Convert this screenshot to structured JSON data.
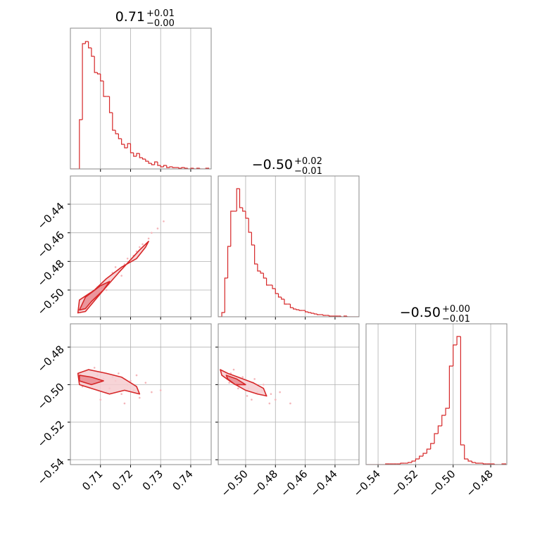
{
  "chart_data": [
    {
      "type": "histogram",
      "title": "0.71",
      "title_upper": "+0.01",
      "title_lower": "−0.00",
      "color": "#d62728",
      "grid": true,
      "bins": [
        0.7,
        0.701,
        0.702,
        0.703,
        0.704,
        0.705,
        0.706,
        0.707,
        0.708,
        0.709,
        0.71,
        0.711,
        0.712,
        0.713,
        0.714,
        0.715,
        0.716,
        0.717,
        0.718,
        0.719,
        0.72,
        0.721,
        0.722,
        0.723,
        0.724,
        0.725,
        0.726,
        0.727,
        0.728,
        0.729,
        0.73,
        0.731,
        0.732,
        0.733,
        0.734,
        0.735,
        0.736,
        0.737,
        0.738,
        0.739,
        0.74,
        0.741,
        0.742,
        0.743,
        0.744,
        0.745,
        0.746
      ],
      "counts": [
        0,
        0,
        0,
        70,
        178,
        181,
        172,
        160,
        137,
        135,
        125,
        103,
        103,
        80,
        55,
        50,
        43,
        35,
        30,
        36,
        23,
        18,
        22,
        16,
        14,
        11,
        8,
        6,
        10,
        5,
        3,
        5,
        2,
        3,
        2,
        2,
        1,
        2,
        1,
        0,
        1,
        0,
        1,
        0,
        0,
        1
      ],
      "xlim": [
        0.7,
        0.7468
      ],
      "ylim": [
        0,
        200
      ],
      "xticks": [
        0.71,
        0.72,
        0.73,
        0.74
      ]
    },
    {
      "type": "scatter",
      "color": "#d62728",
      "point_color": "#f4b6ba",
      "contour_fills": [
        "#f6cdd0",
        "#e98b92"
      ],
      "grid": true,
      "x": [
        0.704,
        0.706,
        0.708,
        0.709,
        0.711,
        0.713,
        0.714,
        0.716,
        0.718,
        0.719,
        0.721,
        0.723,
        0.724,
        0.726,
        0.727,
        0.729,
        0.712,
        0.707,
        0.717,
        0.722,
        0.731,
        0.705,
        0.715,
        0.72
      ],
      "y": [
        -0.512,
        -0.506,
        -0.503,
        -0.498,
        -0.495,
        -0.493,
        -0.488,
        -0.486,
        -0.482,
        -0.478,
        -0.476,
        -0.47,
        -0.468,
        -0.464,
        -0.46,
        -0.457,
        -0.5,
        -0.509,
        -0.49,
        -0.473,
        -0.452,
        -0.509,
        -0.484,
        -0.48
      ],
      "contours": [
        {
          "x": [
            0.7025,
            0.703,
            0.708,
            0.712,
            0.717,
            0.722,
            0.725,
            0.726,
            0.723,
            0.716,
            0.711,
            0.707,
            0.705
          ],
          "y": [
            -0.516,
            -0.507,
            -0.5,
            -0.492,
            -0.484,
            -0.478,
            -0.47,
            -0.466,
            -0.472,
            -0.488,
            -0.5,
            -0.51,
            -0.515
          ]
        },
        {
          "x": [
            0.703,
            0.705,
            0.71,
            0.713,
            0.711,
            0.707,
            0.705
          ],
          "y": [
            -0.514,
            -0.505,
            -0.497,
            -0.494,
            -0.5,
            -0.508,
            -0.513
          ]
        }
      ],
      "xlim": [
        0.7,
        0.7468
      ],
      "ylim": [
        -0.5187,
        -0.4203
      ],
      "xticks": [
        0.71,
        0.72,
        0.73,
        0.74
      ],
      "yticks": [
        {
          "value": -0.44,
          "label": "−0.44"
        },
        {
          "value": -0.46,
          "label": "−0.46"
        },
        {
          "value": -0.48,
          "label": "−0.48"
        },
        {
          "value": -0.5,
          "label": "−0.50"
        }
      ],
      "show_ytick_labels": true
    },
    {
      "type": "histogram",
      "title": "−0.50",
      "title_upper": "+0.02",
      "title_lower": "−0.01",
      "color": "#d62728",
      "grid": true,
      "bins": [
        -0.518,
        -0.516,
        -0.514,
        -0.512,
        -0.51,
        -0.508,
        -0.506,
        -0.504,
        -0.502,
        -0.5,
        -0.498,
        -0.496,
        -0.494,
        -0.492,
        -0.49,
        -0.488,
        -0.486,
        -0.484,
        -0.482,
        -0.48,
        -0.478,
        -0.476,
        -0.474,
        -0.472,
        -0.47,
        -0.468,
        -0.466,
        -0.464,
        -0.462,
        -0.46,
        -0.458,
        -0.456,
        -0.454,
        -0.452,
        -0.45,
        -0.448,
        -0.446,
        -0.444,
        -0.442,
        -0.44,
        -0.438,
        -0.436,
        -0.434,
        -0.432,
        -0.43,
        -0.428,
        -0.426,
        -0.424
      ],
      "counts": [
        0,
        6,
        55,
        100,
        150,
        150,
        182,
        155,
        150,
        140,
        120,
        102,
        75,
        65,
        62,
        55,
        45,
        45,
        40,
        33,
        28,
        25,
        18,
        18,
        13,
        11,
        10,
        9,
        9,
        7,
        6,
        5,
        4,
        3,
        3,
        2,
        2,
        1,
        1,
        1,
        1,
        0,
        1,
        0,
        0,
        0,
        0
      ],
      "xlim": [
        -0.5184,
        -0.4239
      ],
      "ylim": [
        0,
        200
      ],
      "xticks": [
        -0.5,
        -0.48,
        -0.46,
        -0.44
      ]
    },
    {
      "type": "scatter",
      "color": "#d62728",
      "point_color": "#f4b6ba",
      "contour_fills": [
        "#f6cdd0",
        "#e98b92"
      ],
      "grid": true,
      "x": [
        0.703,
        0.705,
        0.707,
        0.709,
        0.711,
        0.713,
        0.715,
        0.717,
        0.719,
        0.721,
        0.723,
        0.725,
        0.704,
        0.708,
        0.712,
        0.716,
        0.72,
        0.727,
        0.71,
        0.714,
        0.718,
        0.706,
        0.722,
        0.73
      ],
      "y": [
        -0.494,
        -0.493,
        -0.499,
        -0.495,
        -0.497,
        -0.502,
        -0.498,
        -0.505,
        -0.5,
        -0.503,
        -0.507,
        -0.499,
        -0.501,
        -0.491,
        -0.504,
        -0.494,
        -0.498,
        -0.504,
        -0.508,
        -0.496,
        -0.51,
        -0.497,
        -0.495,
        -0.503
      ],
      "contours": [
        {
          "x": [
            0.7025,
            0.706,
            0.712,
            0.717,
            0.722,
            0.723,
            0.718,
            0.713,
            0.707,
            0.703
          ],
          "y": [
            -0.494,
            -0.492,
            -0.494,
            -0.496,
            -0.501,
            -0.505,
            -0.503,
            -0.505,
            -0.502,
            -0.5
          ]
        },
        {
          "x": [
            0.703,
            0.707,
            0.711,
            0.707,
            0.703
          ],
          "y": [
            -0.495,
            -0.496,
            -0.498,
            -0.5,
            -0.498
          ]
        }
      ],
      "xlim": [
        0.7,
        0.7468
      ],
      "ylim": [
        -0.5426,
        -0.4676
      ],
      "xticks": [
        0.71,
        0.72,
        0.73,
        0.74
      ],
      "show_xtick_labels": true,
      "yticks": [
        {
          "value": -0.48,
          "label": "−0.48"
        },
        {
          "value": -0.5,
          "label": "−0.50"
        },
        {
          "value": -0.52,
          "label": "−0.52"
        },
        {
          "value": -0.54,
          "label": "−0.54"
        }
      ],
      "show_ytick_labels": true
    },
    {
      "type": "scatter",
      "color": "#d62728",
      "point_color": "#f4b6ba",
      "contour_fills": [
        "#f6cdd0",
        "#e98b92"
      ],
      "grid": true,
      "x": [
        -0.516,
        -0.513,
        -0.51,
        -0.507,
        -0.504,
        -0.501,
        -0.498,
        -0.495,
        -0.492,
        -0.489,
        -0.486,
        -0.483,
        -0.48,
        -0.511,
        -0.505,
        -0.499,
        -0.494,
        -0.488,
        -0.477,
        -0.47,
        -0.502,
        -0.496,
        -0.484,
        -0.508
      ],
      "y": [
        -0.493,
        -0.495,
        -0.494,
        -0.498,
        -0.497,
        -0.5,
        -0.502,
        -0.499,
        -0.504,
        -0.503,
        -0.506,
        -0.505,
        -0.508,
        -0.499,
        -0.502,
        -0.506,
        -0.497,
        -0.5,
        -0.504,
        -0.51,
        -0.496,
        -0.508,
        -0.51,
        -0.492
      ],
      "contours": [
        {
          "x": [
            -0.517,
            -0.512,
            -0.505,
            -0.495,
            -0.488,
            -0.486,
            -0.492,
            -0.5,
            -0.509,
            -0.516
          ],
          "y": [
            -0.492,
            -0.494,
            -0.496,
            -0.499,
            -0.502,
            -0.506,
            -0.505,
            -0.503,
            -0.499,
            -0.495
          ]
        },
        {
          "x": [
            -0.513,
            -0.506,
            -0.5,
            -0.507,
            -0.512
          ],
          "y": [
            -0.495,
            -0.497,
            -0.5,
            -0.5,
            -0.497
          ]
        }
      ],
      "xlim": [
        -0.5184,
        -0.4239
      ],
      "ylim": [
        -0.5426,
        -0.4676
      ],
      "xticks": [
        {
          "value": -0.5,
          "label": "−0.50"
        },
        {
          "value": -0.48,
          "label": "−0.48"
        },
        {
          "value": -0.46,
          "label": "−0.46"
        },
        {
          "value": -0.44,
          "label": "−0.44"
        }
      ],
      "show_xtick_labels": true,
      "yticks": [
        -0.48,
        -0.5,
        -0.52,
        -0.54
      ]
    },
    {
      "type": "histogram",
      "title": "−0.50",
      "title_upper": "+0.00",
      "title_lower": "−0.01",
      "color": "#d62728",
      "grid": true,
      "bins": [
        -0.546,
        -0.544,
        -0.542,
        -0.54,
        -0.538,
        -0.536,
        -0.534,
        -0.532,
        -0.53,
        -0.528,
        -0.526,
        -0.524,
        -0.522,
        -0.52,
        -0.518,
        -0.516,
        -0.514,
        -0.512,
        -0.51,
        -0.508,
        -0.506,
        -0.504,
        -0.502,
        -0.5,
        -0.498,
        -0.496,
        -0.494,
        -0.492,
        -0.49,
        -0.488,
        -0.486,
        -0.484,
        -0.482,
        -0.48,
        -0.478,
        -0.476,
        -0.474,
        -0.472
      ],
      "counts": [
        0,
        0,
        0,
        0,
        0,
        1,
        1,
        1,
        1,
        2,
        2,
        3,
        5,
        8,
        12,
        16,
        22,
        30,
        44,
        55,
        70,
        80,
        140,
        170,
        182,
        28,
        8,
        5,
        3,
        2,
        2,
        1,
        1,
        1,
        0,
        0,
        1
      ],
      "xlim": [
        -0.5464,
        -0.4714
      ],
      "ylim": [
        0,
        200
      ],
      "xticks": [
        {
          "value": -0.54,
          "label": "−0.54"
        },
        {
          "value": -0.52,
          "label": "−0.52"
        },
        {
          "value": -0.5,
          "label": "−0.50"
        },
        {
          "value": -0.48,
          "label": "−0.48"
        }
      ],
      "show_xtick_labels": true
    }
  ]
}
